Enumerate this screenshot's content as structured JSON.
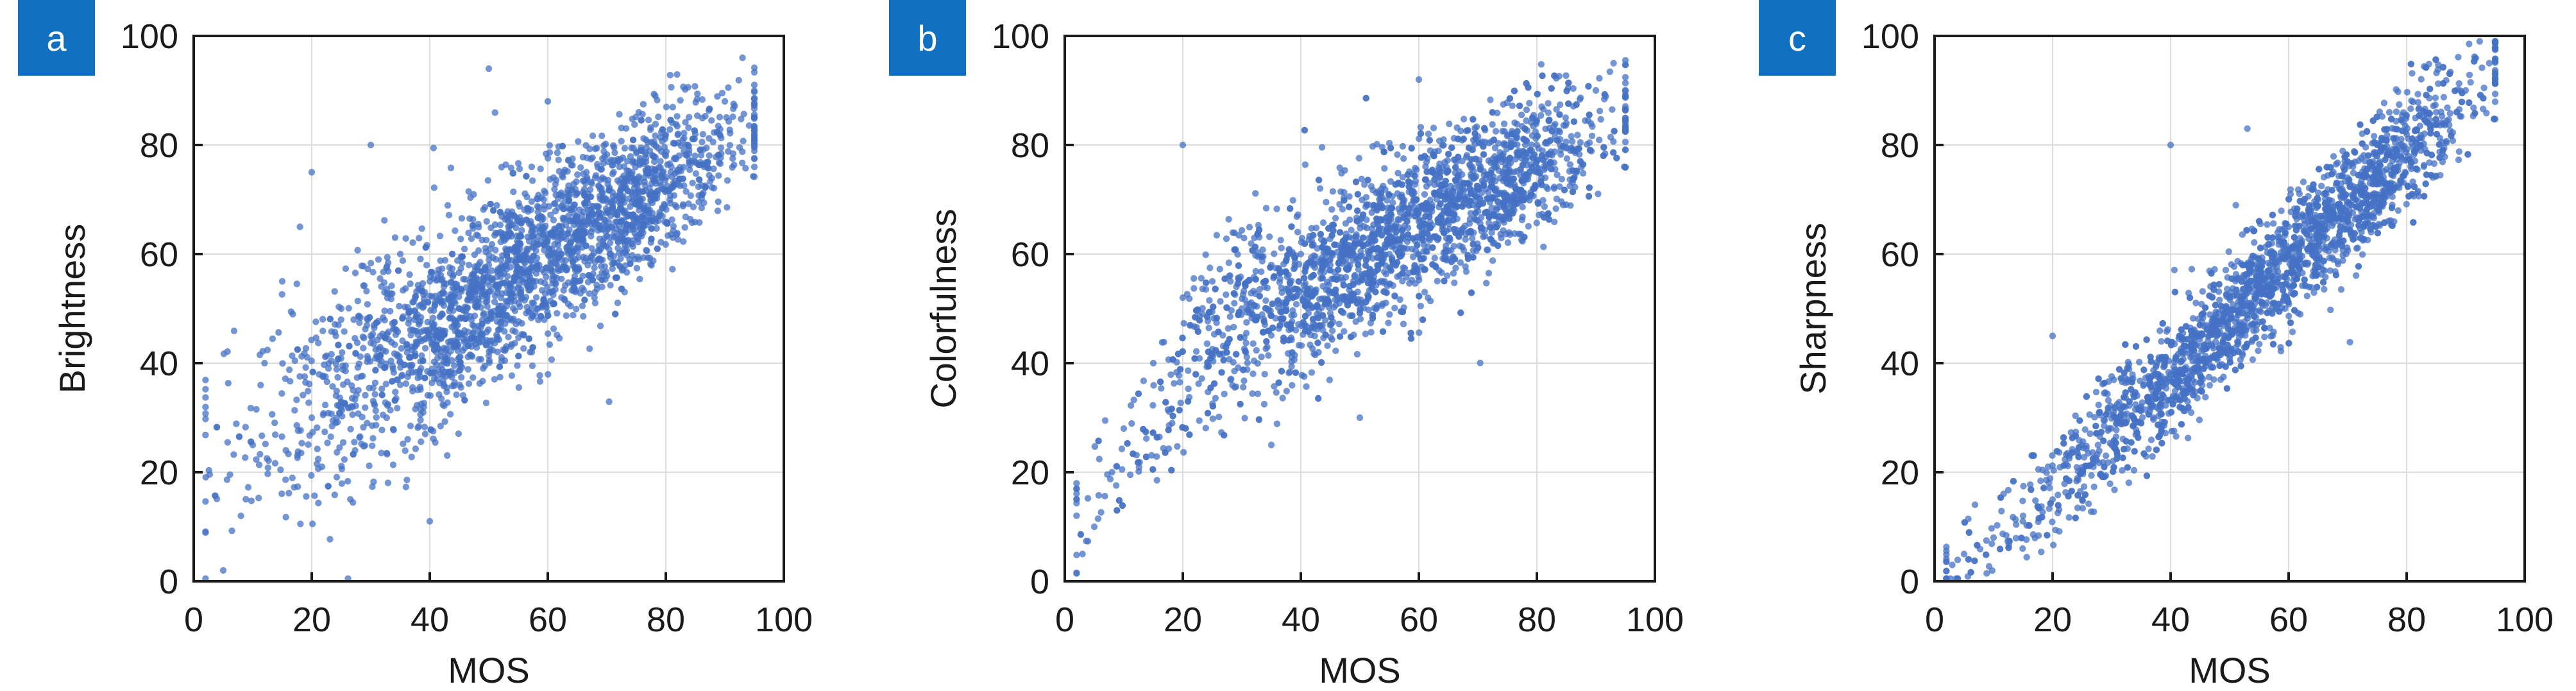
{
  "style": {
    "point_color": "#4472c4",
    "tag_color": "#1170c0",
    "grid_color": "#dcdcdc",
    "axis_color": "#1a1a1a"
  },
  "chart_data": [
    {
      "type": "scatter",
      "panel_label": "a",
      "xlabel": "MOS",
      "ylabel": "Brightness",
      "xlim": [
        0,
        100
      ],
      "ylim": [
        0,
        100
      ],
      "xticks": [
        "0",
        "20",
        "40",
        "60",
        "80",
        "100"
      ],
      "yticks": [
        "0",
        "20",
        "40",
        "60",
        "80",
        "100"
      ],
      "grid": true,
      "legend": "none",
      "point_count": 2600,
      "relation": "correlation approx. 0.72: y ≈ 0.70·MOS + 18, wide spread at low MOS narrowing near MOS 80–95",
      "points": [
        [
          5,
          2
        ],
        [
          8,
          12
        ],
        [
          10,
          25
        ],
        [
          12,
          40
        ],
        [
          15,
          55
        ],
        [
          18,
          65
        ],
        [
          20,
          30
        ],
        [
          25,
          50
        ],
        [
          30,
          45
        ],
        [
          35,
          60
        ],
        [
          40,
          55
        ],
        [
          45,
          50
        ],
        [
          50,
          58
        ],
        [
          50,
          94
        ],
        [
          55,
          62
        ],
        [
          60,
          60
        ],
        [
          65,
          66
        ],
        [
          70,
          70
        ],
        [
          75,
          73
        ],
        [
          80,
          78
        ],
        [
          85,
          82
        ],
        [
          90,
          88
        ],
        [
          93,
          96
        ],
        [
          20,
          75
        ],
        [
          30,
          80
        ],
        [
          40,
          11
        ],
        [
          60,
          88
        ]
      ]
    },
    {
      "type": "scatter",
      "panel_label": "b",
      "xlabel": "MOS",
      "ylabel": "Colorfulness",
      "xlim": [
        0,
        100
      ],
      "ylim": [
        0,
        100
      ],
      "xticks": [
        "0",
        "20",
        "40",
        "60",
        "80",
        "100"
      ],
      "yticks": [
        "0",
        "20",
        "40",
        "60",
        "80",
        "100"
      ],
      "grid": true,
      "legend": "none",
      "point_count": 2600,
      "relation": "correlation approx. 0.78: y ≈ 0.60·MOS + 30, widest spread near MOS 20–40",
      "points": [
        [
          3,
          5
        ],
        [
          5,
          10
        ],
        [
          8,
          20
        ],
        [
          10,
          28
        ],
        [
          15,
          40
        ],
        [
          20,
          52
        ],
        [
          25,
          55
        ],
        [
          30,
          50
        ],
        [
          35,
          58
        ],
        [
          40,
          60
        ],
        [
          45,
          58
        ],
        [
          50,
          62
        ],
        [
          55,
          64
        ],
        [
          60,
          66
        ],
        [
          65,
          68
        ],
        [
          70,
          72
        ],
        [
          75,
          75
        ],
        [
          80,
          80
        ],
        [
          85,
          84
        ],
        [
          90,
          90
        ],
        [
          93,
          95
        ],
        [
          20,
          80
        ],
        [
          35,
          25
        ],
        [
          50,
          30
        ],
        [
          60,
          92
        ]
      ]
    },
    {
      "type": "scatter",
      "panel_label": "c",
      "xlabel": "MOS",
      "ylabel": "Sharpness",
      "xlim": [
        0,
        100
      ],
      "ylim": [
        0,
        100
      ],
      "xticks": [
        "0",
        "20",
        "40",
        "60",
        "80",
        "100"
      ],
      "yticks": [
        "0",
        "20",
        "40",
        "60",
        "80",
        "100"
      ],
      "grid": true,
      "legend": "none",
      "point_count": 2600,
      "relation": "correlation approx. 0.95: y ≈ 1.05·MOS − 5, tight band along the diagonal",
      "points": [
        [
          3,
          3
        ],
        [
          5,
          5
        ],
        [
          10,
          8
        ],
        [
          15,
          12
        ],
        [
          20,
          15
        ],
        [
          25,
          20
        ],
        [
          30,
          25
        ],
        [
          35,
          32
        ],
        [
          40,
          38
        ],
        [
          45,
          45
        ],
        [
          50,
          52
        ],
        [
          55,
          58
        ],
        [
          60,
          65
        ],
        [
          65,
          70
        ],
        [
          70,
          74
        ],
        [
          75,
          78
        ],
        [
          80,
          82
        ],
        [
          85,
          86
        ],
        [
          90,
          90
        ],
        [
          94,
          95
        ],
        [
          40,
          80
        ],
        [
          53,
          83
        ],
        [
          20,
          45
        ]
      ]
    }
  ]
}
